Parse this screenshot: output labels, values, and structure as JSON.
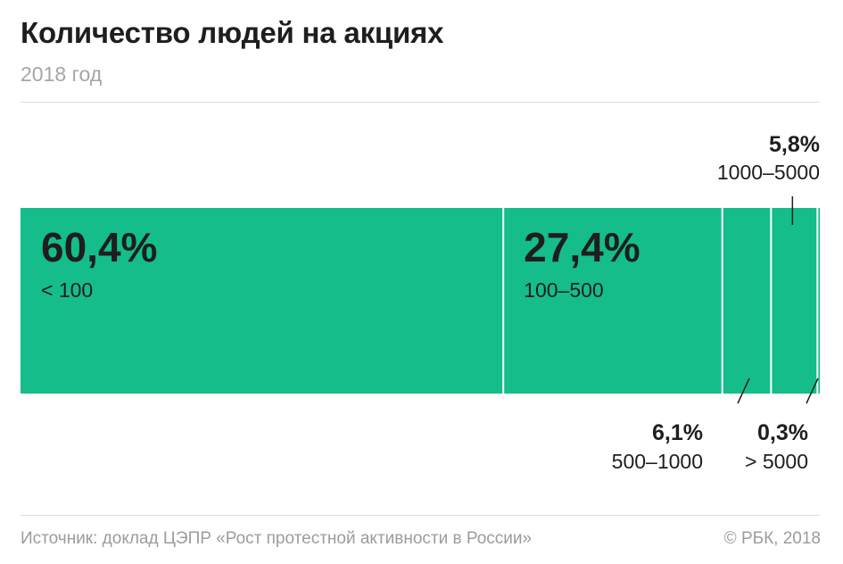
{
  "title": "Количество людей на акциях",
  "subtitle": "2018 год",
  "source": "Источник: доклад ЦЭПР «Рост протестной активности в России»",
  "credit": "© РБК, 2018",
  "colors": {
    "bar": "#14bd8a",
    "text": "#1e1e1e",
    "muted": "#9c9c9c"
  },
  "chart_data": {
    "type": "bar",
    "orientation": "horizontal-stacked",
    "unit": "%",
    "categories": [
      "< 100",
      "100–500",
      "500–1000",
      "1000–5000",
      "> 5000"
    ],
    "values": [
      60.4,
      27.4,
      6.1,
      5.8,
      0.3
    ],
    "value_labels": [
      "60,4%",
      "27,4%",
      "6,1%",
      "5,8%",
      "0,3%"
    ],
    "label_placement": [
      "inside",
      "inside",
      "below",
      "above",
      "below"
    ]
  }
}
